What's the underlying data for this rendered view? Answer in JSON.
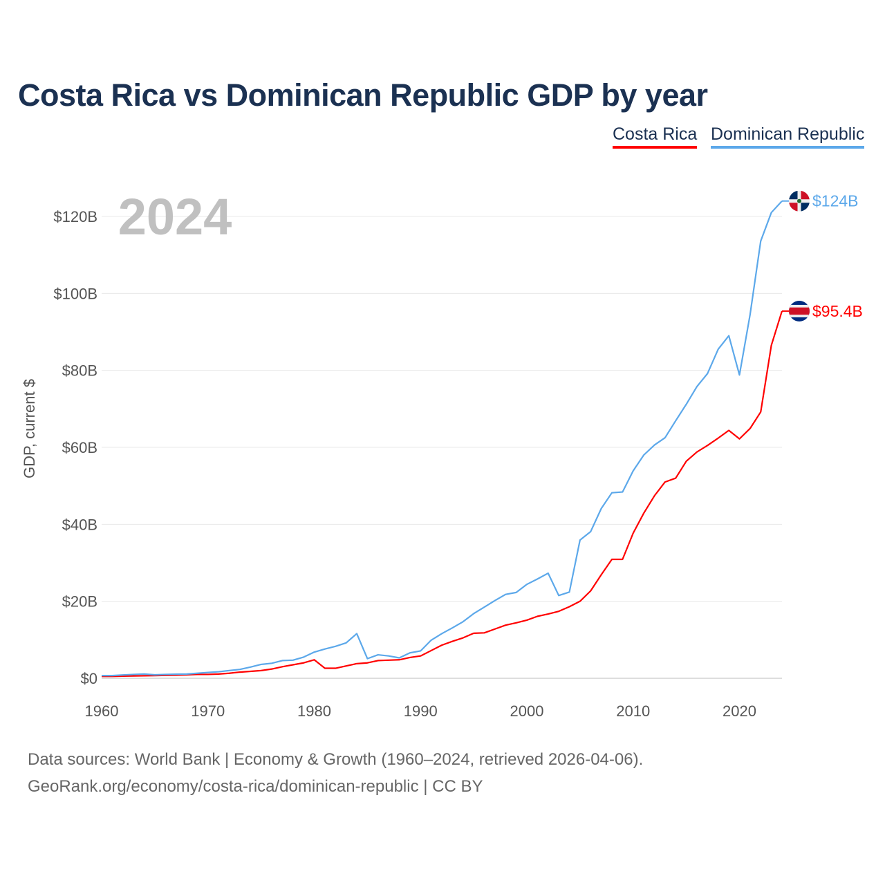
{
  "title": "Costa Rica vs Dominican Republic GDP by year",
  "year_label": "2024",
  "footer": {
    "line1": "Data sources: World Bank | Economy & Growth (1960–2024, retrieved 2026-04-06).",
    "line2": "GeoRank.org/economy/costa-rica/dominican-republic | CC BY"
  },
  "chart_data": {
    "type": "line",
    "title": "Costa Rica vs Dominican Republic GDP by year",
    "xlabel": "",
    "ylabel": "GDP, current $",
    "xlim": [
      1960,
      2024
    ],
    "ylim": [
      0,
      130
    ],
    "grid": true,
    "legend_position": "top-right",
    "x_ticks": [
      1960,
      1970,
      1980,
      1990,
      2000,
      2010,
      2020
    ],
    "x_tick_labels": [
      "1960",
      "1970",
      "1980",
      "1990",
      "2000",
      "2010",
      "2020"
    ],
    "y_ticks": [
      0,
      20,
      40,
      60,
      80,
      100,
      120
    ],
    "y_tick_labels": [
      "$0",
      "$20B",
      "$40B",
      "$60B",
      "$80B",
      "$100B",
      "$120B"
    ],
    "x": [
      1960,
      1961,
      1962,
      1963,
      1964,
      1965,
      1966,
      1967,
      1968,
      1969,
      1970,
      1971,
      1972,
      1973,
      1974,
      1975,
      1976,
      1977,
      1978,
      1979,
      1980,
      1981,
      1982,
      1983,
      1984,
      1985,
      1986,
      1987,
      1988,
      1989,
      1990,
      1991,
      1992,
      1993,
      1994,
      1995,
      1996,
      1997,
      1998,
      1999,
      2000,
      2001,
      2002,
      2003,
      2004,
      2005,
      2006,
      2007,
      2008,
      2009,
      2010,
      2011,
      2012,
      2013,
      2014,
      2015,
      2016,
      2017,
      2018,
      2019,
      2020,
      2021,
      2022,
      2023,
      2024
    ],
    "series": [
      {
        "name": "Costa Rica",
        "color": "#ff0000",
        "end_label": "$95.4B",
        "flag": "costa-rica-flag-icon",
        "values": [
          0.5,
          0.5,
          0.55,
          0.6,
          0.65,
          0.7,
          0.75,
          0.8,
          0.9,
          1.0,
          1.0,
          1.1,
          1.3,
          1.6,
          1.8,
          2.0,
          2.4,
          3.0,
          3.5,
          4.0,
          4.8,
          2.6,
          2.6,
          3.2,
          3.8,
          4.0,
          4.6,
          4.7,
          4.8,
          5.4,
          5.8,
          7.2,
          8.6,
          9.6,
          10.5,
          11.7,
          11.8,
          12.8,
          13.8,
          14.4,
          15.1,
          16.1,
          16.7,
          17.4,
          18.6,
          20.0,
          22.7,
          26.9,
          30.9,
          30.9,
          37.7,
          42.9,
          47.4,
          51.0,
          52.0,
          56.4,
          58.8,
          60.5,
          62.4,
          64.4,
          62.2,
          64.9,
          69.2,
          86.5,
          95.4
        ]
      },
      {
        "name": "Dominican Republic",
        "color": "#5ca8ea",
        "end_label": "$124B",
        "flag": "dominican-republic-flag-icon",
        "values": [
          0.7,
          0.7,
          0.85,
          1.0,
          1.1,
          0.9,
          1.0,
          1.05,
          1.1,
          1.3,
          1.5,
          1.7,
          2.0,
          2.3,
          2.9,
          3.6,
          3.9,
          4.6,
          4.7,
          5.5,
          6.8,
          7.6,
          8.3,
          9.2,
          11.6,
          5.1,
          6.1,
          5.8,
          5.3,
          6.6,
          7.1,
          9.9,
          11.6,
          13.1,
          14.7,
          16.8,
          18.5,
          20.2,
          21.8,
          22.3,
          24.4,
          25.8,
          27.3,
          21.5,
          22.4,
          35.9,
          38.1,
          44.1,
          48.2,
          48.4,
          53.9,
          58.0,
          60.6,
          62.5,
          66.9,
          71.2,
          75.8,
          79.2,
          85.5,
          89.0,
          78.8,
          94.5,
          113.6,
          121.0,
          124.0
        ]
      }
    ]
  }
}
